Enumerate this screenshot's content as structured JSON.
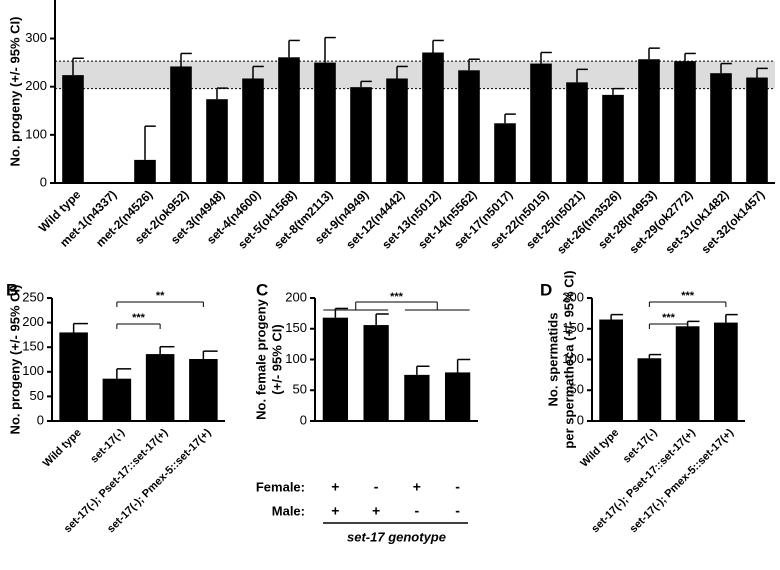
{
  "chart_data": [
    {
      "type": "bar",
      "ylabel": [
        "No. progeny (+/- 95% CI)"
      ],
      "categories": [
        "Wild type",
        "met-1(n4337)",
        "met-2(n4526)",
        "set-2(ok952)",
        "set-3(n4948)",
        "set-4(n4600)",
        "set-5(ok1568)",
        "set-8(tm2113)",
        "set-9(n4949)",
        "set-12(n4442)",
        "set-13(n5012)",
        "set-14(n5562)",
        "set-17(n5017)",
        "set-22(n5015)",
        "set-25(n5021)",
        "set-26(tm3526)",
        "set-28(n4953)",
        "set-29(ok2772)",
        "set-31(ok1482)",
        "set-32(ok1457)"
      ],
      "values": [
        224,
        0,
        48,
        242,
        174,
        217,
        261,
        250,
        199,
        217,
        271,
        234,
        124,
        248,
        209,
        183,
        257,
        253,
        228,
        219
      ],
      "errors": [
        35,
        null,
        70,
        27,
        23,
        25,
        35,
        52,
        12,
        25,
        25,
        23,
        19,
        23,
        27,
        13,
        23,
        16,
        20,
        19
      ],
      "reference_band": [
        196,
        253
      ],
      "color": "#000000",
      "ylim": [
        0,
        380
      ],
      "yticks": [
        0,
        100,
        200,
        300
      ]
    },
    {
      "type": "bar",
      "panel": "B",
      "ylabel": [
        "No. progeny (+/- 95% CI)"
      ],
      "categories": [
        "Wild type",
        "set-17(-)",
        "set-17(-); Pset-17::set-17(+)",
        "set-17(-); Pmex-5::set-17(+)"
      ],
      "values": [
        180,
        86,
        136,
        126
      ],
      "errors": [
        18,
        20,
        15,
        16
      ],
      "significance": [
        {
          "from": 1,
          "to": 2,
          "label": "***"
        },
        {
          "from": 1,
          "to": 3,
          "label": "**"
        }
      ],
      "color": "#000000",
      "ylim": [
        0,
        250
      ],
      "yticks": [
        0,
        50,
        100,
        150,
        200,
        250
      ]
    },
    {
      "type": "bar",
      "panel": "C",
      "ylabel": [
        "No. female progeny",
        "(+/- 95% CI)"
      ],
      "values": [
        168,
        156,
        75,
        79
      ],
      "errors": [
        15,
        18,
        14,
        21
      ],
      "significance": [
        {
          "from": [
            0,
            1
          ],
          "to": [
            2,
            3
          ],
          "label": "***"
        }
      ],
      "genotype_rows": [
        {
          "label": "Female:",
          "values": [
            "+",
            "-",
            "+",
            "-"
          ]
        },
        {
          "label": "Male:",
          "values": [
            "+",
            "+",
            "-",
            "-"
          ]
        }
      ],
      "xlabel": "set-17 genotype",
      "color": "#000000",
      "ylim": [
        0,
        200
      ],
      "yticks": [
        0,
        50,
        100,
        150,
        200
      ]
    },
    {
      "type": "bar",
      "panel": "D",
      "ylabel": [
        "No. spermatids",
        "per spermatheca (+/- 95% CI)"
      ],
      "categories": [
        "Wild type",
        "set-17(-)",
        "set-17(-); Pset-17::set-17(+)",
        "set-17(-); Pmex-5::set-17(+)"
      ],
      "values": [
        165,
        102,
        154,
        160
      ],
      "errors": [
        8,
        6,
        8,
        13
      ],
      "significance": [
        {
          "from": 1,
          "to": 2,
          "label": "***"
        },
        {
          "from": 1,
          "to": 3,
          "label": "***"
        }
      ],
      "color": "#000000",
      "ylim": [
        0,
        200
      ],
      "yticks": [
        0,
        50,
        100,
        150,
        200
      ]
    }
  ]
}
